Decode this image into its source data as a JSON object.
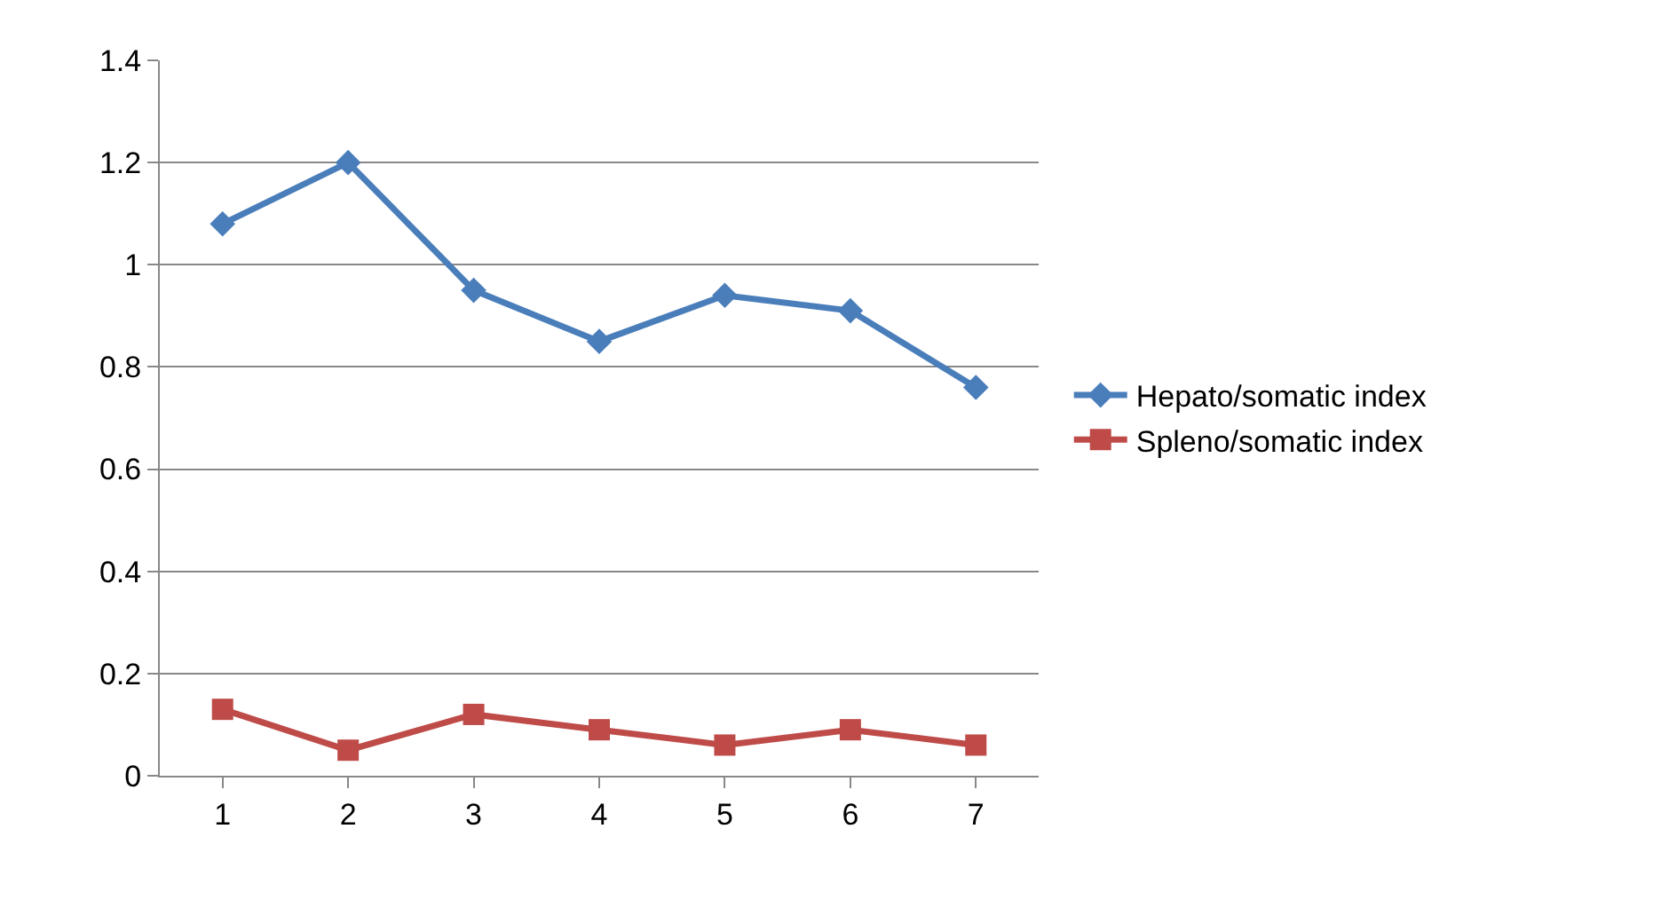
{
  "chart_data": {
    "type": "line",
    "categories": [
      "1",
      "2",
      "3",
      "4",
      "5",
      "6",
      "7"
    ],
    "series": [
      {
        "name": "Hepato/somatic index",
        "color": "#4a7ebb",
        "marker": "diamond",
        "values": [
          1.08,
          1.2,
          0.95,
          0.85,
          0.94,
          0.91,
          0.76
        ]
      },
      {
        "name": "Spleno/somatic index",
        "color": "#be4b48",
        "marker": "square",
        "values": [
          0.13,
          0.05,
          0.12,
          0.09,
          0.06,
          0.09,
          0.06
        ]
      }
    ],
    "ylim": [
      0,
      1.4
    ],
    "yticks": [
      0,
      0.2,
      0.4,
      0.6,
      0.8,
      1,
      1.2,
      1.4
    ],
    "grid": "y",
    "legend": "right",
    "line_style": "solid"
  }
}
